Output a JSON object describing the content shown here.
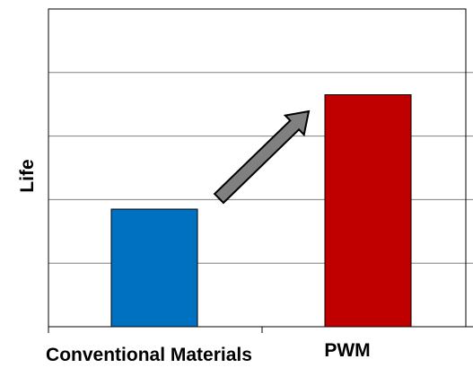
{
  "chart_data": {
    "type": "bar",
    "title": "",
    "xlabel": "",
    "ylabel": "Life",
    "categories": [
      "Conventional Materials",
      "PWM"
    ],
    "values": [
      1.85,
      3.65
    ],
    "ylim": [
      0,
      5
    ],
    "grid": true,
    "legend": "none",
    "bar_colors": [
      "#0070c0",
      "#c00000"
    ],
    "annotations": [
      {
        "type": "arrow",
        "from_category": "Conventional Materials",
        "to_category": "PWM",
        "color": "#808080"
      }
    ],
    "y_tick_labels_visible": false
  }
}
